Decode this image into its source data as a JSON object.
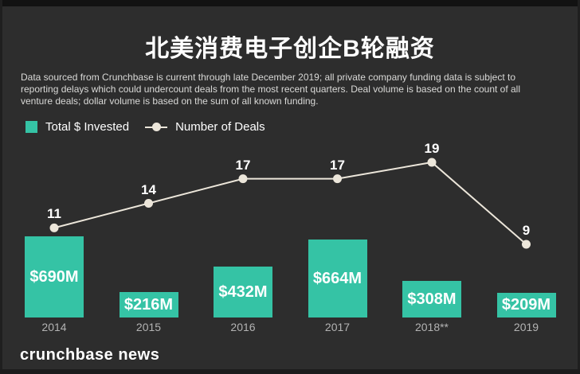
{
  "header": {
    "title": "北美消费电子创企B轮融资",
    "subtitle_lines": [
      "Data sourced from Crunchbase is current through late December 2019; all private company funding data is subject to",
      "reporting delays which could undercount deals from the most recent quarters. Deal volume is based on the count of all",
      "venture deals; dollar volume is based on the sum of all known funding."
    ]
  },
  "legend": {
    "items": [
      {
        "label": "Total $ Invested",
        "marker": "square",
        "color": "#35c3a5"
      },
      {
        "label": "Number of Deals",
        "marker": "dot-line",
        "color": "#ece6da"
      }
    ]
  },
  "footer": {
    "brand": "crunchbase news"
  },
  "colors": {
    "background": "#2d2d2d",
    "bar": "#35c3a5",
    "line": "#ece6da",
    "title": "#ffffff",
    "subtitle": "#d9d9d7",
    "axis_label": "#b3b3b3"
  },
  "chart_data": {
    "type": "bar+line",
    "title": "北美消费电子创企B轮融资",
    "categories": [
      "2014",
      "2015",
      "2016",
      "2017",
      "2018**",
      "2019"
    ],
    "series": [
      {
        "name": "Total $ Invested",
        "type": "bar",
        "unit": "$M",
        "values": [
          690,
          216,
          432,
          664,
          308,
          209
        ],
        "labels": [
          "$690M",
          "$216M",
          "$432M",
          "$664M",
          "$308M",
          "$209M"
        ],
        "color": "#35c3a5",
        "value_labels": "inside-bars"
      },
      {
        "name": "Number of Deals",
        "type": "line",
        "values": [
          11,
          14,
          17,
          17,
          19,
          9
        ],
        "color": "#ece6da",
        "value_labels": "above-points"
      }
    ],
    "xlabel": "",
    "ylabel": "",
    "grid": false,
    "legend_position": "top-left",
    "background": "dark"
  }
}
